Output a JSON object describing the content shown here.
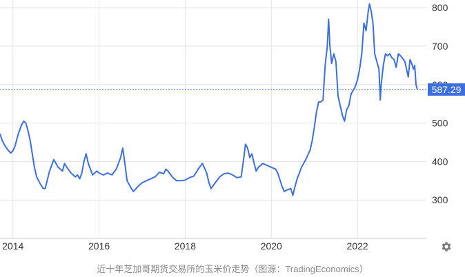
{
  "chart_data": {
    "type": "line",
    "title": "",
    "xlabel": "",
    "ylabel": "",
    "x_ticks": [
      "2014",
      "2016",
      "2018",
      "2020",
      "2022"
    ],
    "y_ticks": [
      300,
      400,
      500,
      600,
      700,
      800
    ],
    "xlim": [
      2013.7,
      2023.6
    ],
    "ylim": [
      200,
      820
    ],
    "grid": true,
    "y_axis_side": "right",
    "last_value_label": "587.29",
    "series": [
      {
        "color": "#3b6fe0",
        "points": [
          [
            2013.7,
            472
          ],
          [
            2013.75,
            455
          ],
          [
            2013.82,
            440
          ],
          [
            2013.9,
            428
          ],
          [
            2013.95,
            422
          ],
          [
            2014.0,
            428
          ],
          [
            2014.05,
            440
          ],
          [
            2014.12,
            470
          ],
          [
            2014.2,
            495
          ],
          [
            2014.25,
            505
          ],
          [
            2014.3,
            500
          ],
          [
            2014.35,
            480
          ],
          [
            2014.4,
            455
          ],
          [
            2014.45,
            420
          ],
          [
            2014.5,
            385
          ],
          [
            2014.55,
            360
          ],
          [
            2014.62,
            345
          ],
          [
            2014.7,
            330
          ],
          [
            2014.75,
            330
          ],
          [
            2014.85,
            375
          ],
          [
            2014.95,
            405
          ],
          [
            2015.0,
            395
          ],
          [
            2015.05,
            385
          ],
          [
            2015.15,
            375
          ],
          [
            2015.2,
            395
          ],
          [
            2015.25,
            385
          ],
          [
            2015.35,
            370
          ],
          [
            2015.45,
            360
          ],
          [
            2015.5,
            365
          ],
          [
            2015.55,
            355
          ],
          [
            2015.6,
            370
          ],
          [
            2015.65,
            400
          ],
          [
            2015.7,
            420
          ],
          [
            2015.75,
            395
          ],
          [
            2015.8,
            380
          ],
          [
            2015.85,
            365
          ],
          [
            2015.95,
            375
          ],
          [
            2016.0,
            370
          ],
          [
            2016.1,
            365
          ],
          [
            2016.2,
            370
          ],
          [
            2016.3,
            365
          ],
          [
            2016.4,
            380
          ],
          [
            2016.5,
            410
          ],
          [
            2016.55,
            435
          ],
          [
            2016.6,
            395
          ],
          [
            2016.65,
            350
          ],
          [
            2016.75,
            330
          ],
          [
            2016.8,
            322
          ],
          [
            2016.9,
            335
          ],
          [
            2017.0,
            345
          ],
          [
            2017.1,
            350
          ],
          [
            2017.2,
            355
          ],
          [
            2017.3,
            360
          ],
          [
            2017.4,
            372
          ],
          [
            2017.5,
            368
          ],
          [
            2017.55,
            380
          ],
          [
            2017.6,
            375
          ],
          [
            2017.7,
            360
          ],
          [
            2017.8,
            350
          ],
          [
            2017.9,
            350
          ],
          [
            2018.0,
            352
          ],
          [
            2018.1,
            358
          ],
          [
            2018.2,
            362
          ],
          [
            2018.3,
            380
          ],
          [
            2018.4,
            395
          ],
          [
            2018.5,
            370
          ],
          [
            2018.55,
            345
          ],
          [
            2018.6,
            330
          ],
          [
            2018.7,
            345
          ],
          [
            2018.8,
            360
          ],
          [
            2018.9,
            368
          ],
          [
            2019.0,
            370
          ],
          [
            2019.1,
            365
          ],
          [
            2019.2,
            358
          ],
          [
            2019.3,
            360
          ],
          [
            2019.35,
            400
          ],
          [
            2019.4,
            445
          ],
          [
            2019.45,
            435
          ],
          [
            2019.5,
            410
          ],
          [
            2019.55,
            420
          ],
          [
            2019.6,
            395
          ],
          [
            2019.65,
            375
          ],
          [
            2019.7,
            385
          ],
          [
            2019.8,
            395
          ],
          [
            2019.9,
            390
          ],
          [
            2020.0,
            385
          ],
          [
            2020.1,
            380
          ],
          [
            2020.15,
            370
          ],
          [
            2020.25,
            335
          ],
          [
            2020.3,
            322
          ],
          [
            2020.35,
            325
          ],
          [
            2020.45,
            330
          ],
          [
            2020.5,
            312
          ],
          [
            2020.55,
            335
          ],
          [
            2020.6,
            355
          ],
          [
            2020.7,
            385
          ],
          [
            2020.8,
            405
          ],
          [
            2020.9,
            430
          ],
          [
            2020.95,
            455
          ],
          [
            2021.0,
            490
          ],
          [
            2021.05,
            530
          ],
          [
            2021.1,
            555
          ],
          [
            2021.15,
            555
          ],
          [
            2021.2,
            560
          ],
          [
            2021.25,
            650
          ],
          [
            2021.3,
            700
          ],
          [
            2021.33,
            770
          ],
          [
            2021.36,
            700
          ],
          [
            2021.4,
            655
          ],
          [
            2021.45,
            680
          ],
          [
            2021.5,
            660
          ],
          [
            2021.55,
            570
          ],
          [
            2021.6,
            545
          ],
          [
            2021.65,
            520
          ],
          [
            2021.7,
            505
          ],
          [
            2021.75,
            535
          ],
          [
            2021.8,
            545
          ],
          [
            2021.85,
            575
          ],
          [
            2021.9,
            585
          ],
          [
            2021.95,
            595
          ],
          [
            2022.0,
            612
          ],
          [
            2022.05,
            640
          ],
          [
            2022.1,
            680
          ],
          [
            2022.15,
            760
          ],
          [
            2022.2,
            740
          ],
          [
            2022.25,
            790
          ],
          [
            2022.28,
            810
          ],
          [
            2022.32,
            790
          ],
          [
            2022.36,
            760
          ],
          [
            2022.4,
            680
          ],
          [
            2022.45,
            660
          ],
          [
            2022.5,
            640
          ],
          [
            2022.53,
            560
          ],
          [
            2022.55,
            600
          ],
          [
            2022.6,
            650
          ],
          [
            2022.65,
            680
          ],
          [
            2022.7,
            675
          ],
          [
            2022.75,
            680
          ],
          [
            2022.8,
            670
          ],
          [
            2022.85,
            665
          ],
          [
            2022.9,
            645
          ],
          [
            2022.95,
            680
          ],
          [
            2023.0,
            675
          ],
          [
            2023.05,
            668
          ],
          [
            2023.1,
            660
          ],
          [
            2023.15,
            635
          ],
          [
            2023.18,
            620
          ],
          [
            2023.22,
            665
          ],
          [
            2023.26,
            655
          ],
          [
            2023.3,
            640
          ],
          [
            2023.33,
            650
          ],
          [
            2023.36,
            600
          ],
          [
            2023.39,
            587.29
          ]
        ]
      }
    ]
  },
  "caption": "近十年芝加哥期货交易所的玉米价走势（图源：TradingEconomics）",
  "settings_icon": "gear-icon",
  "colors": {
    "line": "#3b6fe0",
    "badge_bg": "#3b6fe0",
    "dashed": "#3b6fe0",
    "grid": "#e3e3e3"
  }
}
